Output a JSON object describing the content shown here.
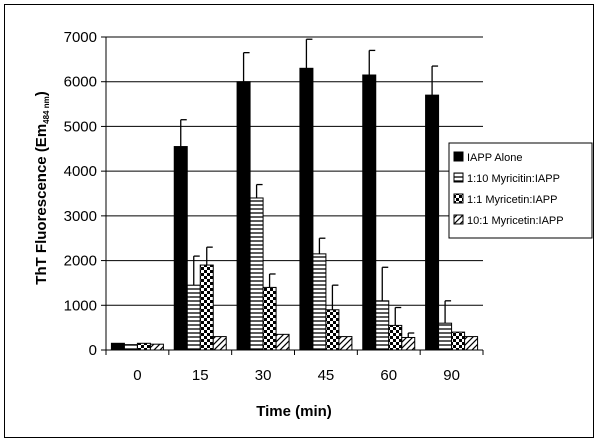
{
  "chart_data": {
    "type": "bar",
    "title": "",
    "xlabel": "Time (min)",
    "ylabel": "ThT Fluorescence (Em",
    "ylabel_subscript": "484 nm",
    "ylabel_close": ")",
    "ylim": [
      0,
      7000
    ],
    "yticks": [
      0,
      1000,
      2000,
      3000,
      4000,
      5000,
      6000,
      7000
    ],
    "grid": "horizontal",
    "legend_position": "right",
    "categories": [
      "0",
      "15",
      "30",
      "45",
      "60",
      "90"
    ],
    "series": [
      {
        "name": "IAPP Alone",
        "pattern": "solid",
        "values": [
          150,
          4550,
          6000,
          6300,
          6150,
          5700
        ],
        "errors": [
          0,
          600,
          650,
          650,
          550,
          650
        ]
      },
      {
        "name": "1:10 Myricitin:IAPP",
        "pattern": "hstripes",
        "values": [
          120,
          1450,
          3400,
          2150,
          1100,
          600
        ],
        "errors": [
          0,
          650,
          300,
          350,
          750,
          500
        ]
      },
      {
        "name": "1:1 Myricetin:IAPP",
        "pattern": "checker",
        "values": [
          150,
          1900,
          1400,
          900,
          550,
          400
        ],
        "errors": [
          0,
          400,
          300,
          550,
          400,
          0
        ]
      },
      {
        "name": "10:1 Myricetin:IAPP",
        "pattern": "diagonal",
        "values": [
          130,
          300,
          350,
          300,
          280,
          300
        ],
        "errors": [
          0,
          0,
          0,
          0,
          100,
          0
        ]
      }
    ]
  }
}
